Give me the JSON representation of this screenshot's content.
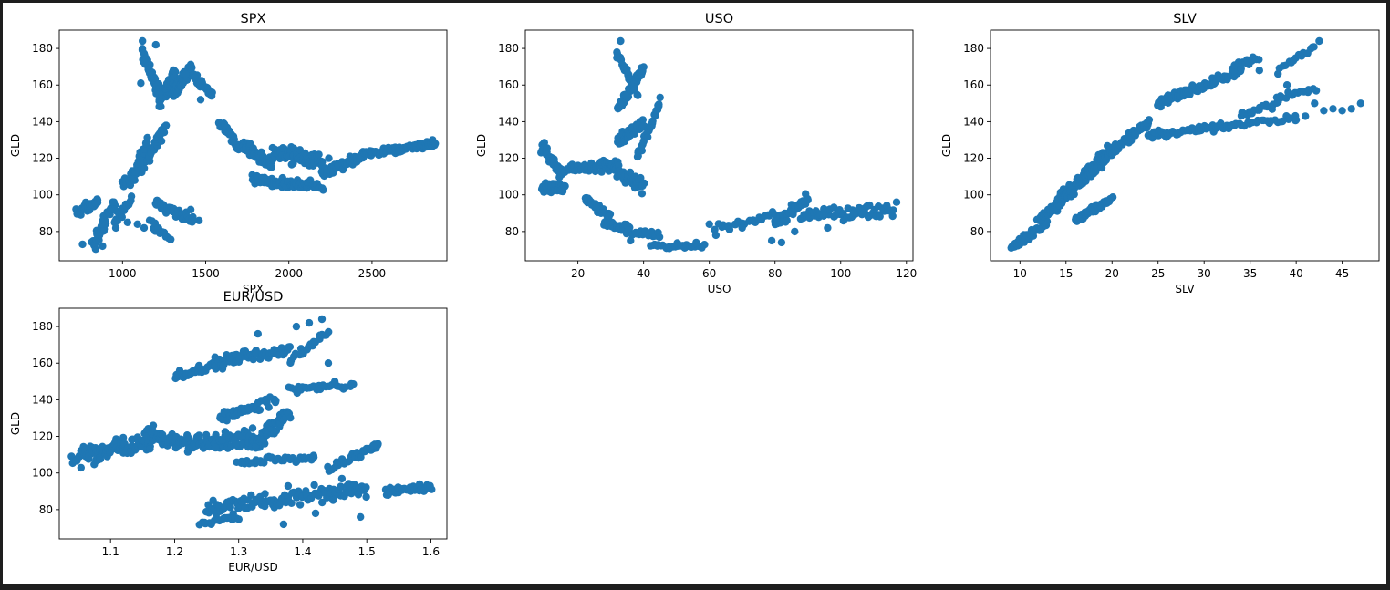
{
  "figure": {
    "background": "#ffffff",
    "frame_color": "#1e1e1e",
    "marker_color": "#1f77b4"
  },
  "chart_data": [
    {
      "type": "scatter",
      "title": "SPX",
      "xlabel": "SPX",
      "ylabel": "GLD",
      "xlim": [
        620,
        2950
      ],
      "ylim": [
        64,
        190
      ],
      "xticks": [
        1000,
        1500,
        2000,
        2500
      ],
      "yticks": [
        80,
        100,
        120,
        140,
        160,
        180
      ],
      "grid": false,
      "segments": [
        [
          720,
          90,
          850,
          96,
          40,
          4
        ],
        [
          820,
          72,
          950,
          96,
          40,
          5
        ],
        [
          950,
          86,
          1060,
          96,
          18,
          4
        ],
        [
          1000,
          104,
          1160,
          122,
          45,
          5
        ],
        [
          1060,
          110,
          1150,
          130,
          25,
          4
        ],
        [
          1160,
          122,
          1260,
          138,
          35,
          4
        ],
        [
          1120,
          178,
          1220,
          155,
          45,
          5
        ],
        [
          1220,
          150,
          1320,
          168,
          50,
          5
        ],
        [
          1300,
          155,
          1420,
          170,
          50,
          5
        ],
        [
          1420,
          165,
          1540,
          155,
          30,
          3
        ],
        [
          1200,
          95,
          1420,
          86,
          50,
          4
        ],
        [
          1170,
          84,
          1280,
          76,
          15,
          3
        ],
        [
          1580,
          140,
          1720,
          124,
          40,
          4
        ],
        [
          1720,
          128,
          1900,
          116,
          60,
          5
        ],
        [
          1780,
          108,
          2200,
          104,
          80,
          4
        ],
        [
          1900,
          124,
          2200,
          118,
          80,
          6
        ],
        [
          2200,
          112,
          2450,
          122,
          50,
          4
        ],
        [
          2450,
          122,
          2880,
          128,
          90,
          3
        ]
      ],
      "points": [
        [
          1120,
          184
        ],
        [
          1200,
          182
        ],
        [
          1110,
          161
        ],
        [
          1380,
          166
        ],
        [
          1470,
          152
        ],
        [
          760,
          73
        ],
        [
          960,
          82
        ],
        [
          1030,
          85
        ],
        [
          1090,
          84
        ],
        [
          1130,
          82
        ],
        [
          1460,
          86
        ],
        [
          1410,
          92
        ],
        [
          2240,
          120
        ],
        [
          2880,
          128
        ],
        [
          880,
          72
        ]
      ]
    },
    {
      "type": "scatter",
      "title": "USO",
      "xlabel": "USO",
      "ylabel": "GLD",
      "xlim": [
        4,
        122
      ],
      "ylim": [
        64,
        190
      ],
      "xticks": [
        20,
        40,
        60,
        80,
        100,
        120
      ],
      "yticks": [
        80,
        100,
        120,
        140,
        160,
        180
      ],
      "grid": false,
      "segments": [
        [
          9,
          104,
          16,
          104,
          45,
          4
        ],
        [
          9,
          126,
          15,
          112,
          35,
          5
        ],
        [
          15,
          114,
          32,
          116,
          50,
          4
        ],
        [
          22,
          98,
          30,
          88,
          25,
          4
        ],
        [
          28,
          86,
          36,
          80,
          30,
          4
        ],
        [
          31,
          114,
          40,
          104,
          50,
          6
        ],
        [
          32,
          130,
          40,
          140,
          50,
          5
        ],
        [
          32,
          148,
          40,
          168,
          60,
          4
        ],
        [
          32,
          178,
          38,
          155,
          30,
          3
        ],
        [
          38,
          120,
          45,
          150,
          30,
          4
        ],
        [
          35,
          80,
          45,
          78,
          15,
          3
        ],
        [
          42,
          72,
          58,
          72,
          25,
          2
        ],
        [
          62,
          82,
          80,
          90,
          25,
          4
        ],
        [
          80,
          84,
          90,
          98,
          40,
          5
        ],
        [
          88,
          88,
          116,
          92,
          60,
          5
        ]
      ],
      "points": [
        [
          33,
          184
        ],
        [
          60,
          84
        ],
        [
          62,
          78
        ],
        [
          70,
          82
        ],
        [
          79,
          75
        ],
        [
          82,
          74
        ],
        [
          86,
          80
        ],
        [
          96,
          82
        ],
        [
          104,
          90
        ],
        [
          117,
          96
        ],
        [
          36,
          75
        ],
        [
          56,
          74
        ]
      ]
    },
    {
      "type": "scatter",
      "title": "SLV",
      "xlabel": "SLV",
      "ylabel": "GLD",
      "xlim": [
        6.8,
        49
      ],
      "ylim": [
        64,
        190
      ],
      "xticks": [
        10,
        15,
        20,
        25,
        30,
        35,
        40,
        45
      ],
      "yticks": [
        80,
        100,
        120,
        140,
        160,
        180
      ],
      "grid": false,
      "segments": [
        [
          9,
          71,
          13,
          85,
          45,
          3
        ],
        [
          12,
          85,
          15,
          99,
          40,
          4
        ],
        [
          14,
          95,
          20,
          125,
          120,
          6
        ],
        [
          16,
          86,
          20,
          98,
          45,
          3
        ],
        [
          19,
          120,
          24,
          140,
          60,
          4
        ],
        [
          24,
          132,
          33,
          138,
          50,
          3
        ],
        [
          33,
          138,
          40,
          142,
          25,
          2
        ],
        [
          25,
          150,
          34,
          168,
          80,
          4
        ],
        [
          33,
          170,
          36,
          175,
          15,
          3
        ],
        [
          34,
          144,
          38,
          150,
          20,
          3
        ],
        [
          38,
          153,
          42,
          158,
          15,
          3
        ],
        [
          38,
          167,
          42,
          182,
          15,
          3
        ]
      ],
      "points": [
        [
          42.5,
          184
        ],
        [
          36,
          168
        ],
        [
          39,
          160
        ],
        [
          42,
          150
        ],
        [
          43,
          146
        ],
        [
          44,
          147
        ],
        [
          45,
          146
        ],
        [
          46,
          147
        ],
        [
          47,
          150
        ],
        [
          40,
          141
        ],
        [
          41,
          143
        ]
      ]
    },
    {
      "type": "scatter",
      "title": "EUR/USD",
      "xlabel": "EUR/USD",
      "ylabel": "GLD",
      "xlim": [
        1.02,
        1.625
      ],
      "ylim": [
        64,
        190
      ],
      "xticks": [
        1.1,
        1.2,
        1.3,
        1.4,
        1.5,
        1.6
      ],
      "yticks": [
        80,
        100,
        120,
        140,
        160,
        180
      ],
      "grid": false,
      "segments": [
        [
          1.04,
          108,
          1.18,
          120,
          120,
          8
        ],
        [
          1.18,
          118,
          1.34,
          116,
          80,
          6
        ],
        [
          1.22,
          114,
          1.32,
          122,
          40,
          5
        ],
        [
          1.2,
          153,
          1.28,
          160,
          40,
          4
        ],
        [
          1.26,
          160,
          1.38,
          168,
          60,
          5
        ],
        [
          1.32,
          116,
          1.38,
          132,
          60,
          6
        ],
        [
          1.27,
          130,
          1.36,
          140,
          40,
          5
        ],
        [
          1.3,
          106,
          1.42,
          108,
          35,
          3
        ],
        [
          1.38,
          146,
          1.48,
          148,
          30,
          3
        ],
        [
          1.38,
          162,
          1.44,
          176,
          20,
          4
        ],
        [
          1.25,
          80,
          1.5,
          92,
          120,
          7
        ],
        [
          1.24,
          72,
          1.3,
          76,
          20,
          2
        ],
        [
          1.53,
          90,
          1.6,
          92,
          40,
          3
        ],
        [
          1.44,
          102,
          1.52,
          116,
          30,
          3
        ]
      ],
      "points": [
        [
          1.43,
          184
        ],
        [
          1.41,
          182
        ],
        [
          1.39,
          180
        ],
        [
          1.49,
          76
        ],
        [
          1.37,
          72
        ],
        [
          1.45,
          150
        ],
        [
          1.44,
          160
        ],
        [
          1.51,
          115
        ],
        [
          1.42,
          78
        ],
        [
          1.33,
          176
        ]
      ]
    }
  ]
}
